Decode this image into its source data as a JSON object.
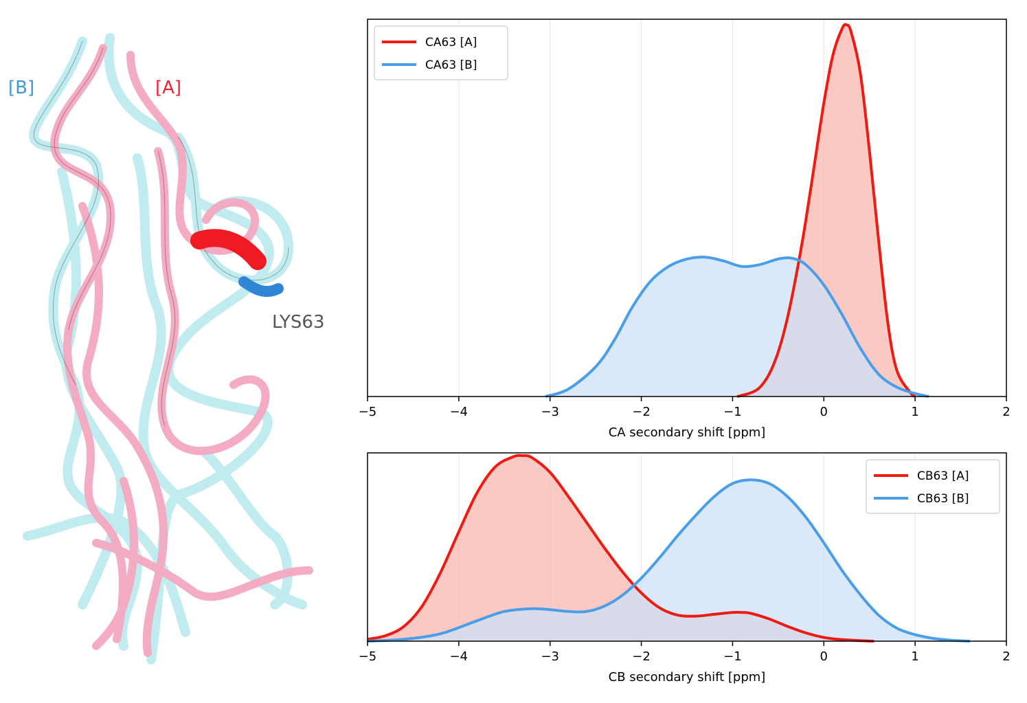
{
  "structure_panel": {
    "label_b": "[B]",
    "label_a": "[A]",
    "residue_label": "LYS63",
    "colors": {
      "model_a": "#f4a8c0",
      "model_b": "#bdebf0",
      "highlight_a": "#ee1b22",
      "highlight_b": "#2f86d6",
      "label_a": "#ee2233",
      "label_b": "#3a9ad9",
      "residue_label": "#555555"
    }
  },
  "chart_data": [
    {
      "type": "area",
      "name": "ca-density",
      "xlabel": "CA secondary shift [ppm]",
      "ylabel": "",
      "xlim": [
        -5,
        2
      ],
      "ylim": [
        0,
        1.0
      ],
      "xticks": [
        -5,
        -4,
        -3,
        -2,
        -1,
        0,
        1,
        2
      ],
      "xtick_labels": [
        "−5",
        "−4",
        "−3",
        "−2",
        "−1",
        "0",
        "1",
        "2"
      ],
      "grid": "vertical",
      "legend_position": "top-left",
      "series": [
        {
          "name": "CA63 [A]",
          "color": "#ee1b12",
          "fill": "#f8b7b0",
          "x": [
            -0.95,
            -0.8,
            -0.7,
            -0.6,
            -0.5,
            -0.4,
            -0.3,
            -0.2,
            -0.1,
            0.0,
            0.1,
            0.2,
            0.25,
            0.3,
            0.4,
            0.5,
            0.6,
            0.7,
            0.8,
            0.95,
            1.0
          ],
          "y": [
            0.0,
            0.01,
            0.025,
            0.06,
            0.12,
            0.21,
            0.33,
            0.47,
            0.63,
            0.79,
            0.92,
            0.99,
            1.0,
            0.98,
            0.87,
            0.66,
            0.42,
            0.2,
            0.07,
            0.01,
            0.0
          ]
        },
        {
          "name": "CA63 [B]",
          "color": "#4a9ee8",
          "fill": "#cce2f7",
          "x": [
            -3.05,
            -2.8,
            -2.5,
            -2.3,
            -2.1,
            -1.9,
            -1.7,
            -1.5,
            -1.3,
            -1.1,
            -0.9,
            -0.7,
            -0.5,
            -0.35,
            -0.2,
            0.0,
            0.2,
            0.4,
            0.6,
            0.8,
            1.0,
            1.15
          ],
          "y": [
            0.0,
            0.02,
            0.08,
            0.15,
            0.24,
            0.31,
            0.35,
            0.37,
            0.375,
            0.365,
            0.35,
            0.355,
            0.37,
            0.372,
            0.355,
            0.3,
            0.22,
            0.13,
            0.06,
            0.025,
            0.008,
            0.0
          ]
        }
      ]
    },
    {
      "type": "area",
      "name": "cb-density",
      "xlabel": "CB secondary shift [ppm]",
      "ylabel": "",
      "xlim": [
        -5,
        2
      ],
      "ylim": [
        0,
        1.0
      ],
      "xticks": [
        -5,
        -4,
        -3,
        -2,
        -1,
        0,
        1,
        2
      ],
      "xtick_labels": [
        "−5",
        "−4",
        "−3",
        "−2",
        "−1",
        "0",
        "1",
        "2"
      ],
      "grid": "vertical",
      "legend_position": "top-right",
      "series": [
        {
          "name": "CB63 [A]",
          "color": "#ee1b12",
          "fill": "#f8b7b0",
          "x": [
            -5.0,
            -4.8,
            -4.6,
            -4.4,
            -4.2,
            -4.0,
            -3.8,
            -3.6,
            -3.4,
            -3.3,
            -3.2,
            -3.0,
            -2.8,
            -2.6,
            -2.4,
            -2.2,
            -2.0,
            -1.8,
            -1.6,
            -1.4,
            -1.2,
            -1.0,
            -0.9,
            -0.8,
            -0.6,
            -0.4,
            -0.2,
            0.0,
            0.2,
            0.4,
            0.55
          ],
          "y": [
            0.01,
            0.03,
            0.08,
            0.19,
            0.37,
            0.59,
            0.8,
            0.94,
            0.995,
            1.0,
            0.99,
            0.91,
            0.78,
            0.64,
            0.5,
            0.37,
            0.26,
            0.18,
            0.14,
            0.135,
            0.145,
            0.155,
            0.155,
            0.15,
            0.12,
            0.08,
            0.045,
            0.02,
            0.008,
            0.003,
            0.0
          ]
        },
        {
          "name": "CB63 [B]",
          "color": "#4a9ee8",
          "fill": "#cce2f7",
          "x": [
            -5.0,
            -4.6,
            -4.2,
            -3.8,
            -3.5,
            -3.2,
            -3.0,
            -2.8,
            -2.6,
            -2.4,
            -2.2,
            -2.0,
            -1.8,
            -1.6,
            -1.4,
            -1.2,
            -1.0,
            -0.8,
            -0.6,
            -0.4,
            -0.2,
            0.0,
            0.2,
            0.4,
            0.6,
            0.8,
            1.0,
            1.2,
            1.4,
            1.6
          ],
          "y": [
            0.0,
            0.01,
            0.04,
            0.11,
            0.16,
            0.175,
            0.17,
            0.16,
            0.16,
            0.19,
            0.25,
            0.34,
            0.45,
            0.57,
            0.68,
            0.78,
            0.85,
            0.87,
            0.85,
            0.78,
            0.67,
            0.53,
            0.38,
            0.25,
            0.14,
            0.07,
            0.035,
            0.015,
            0.005,
            0.0
          ]
        }
      ]
    }
  ]
}
